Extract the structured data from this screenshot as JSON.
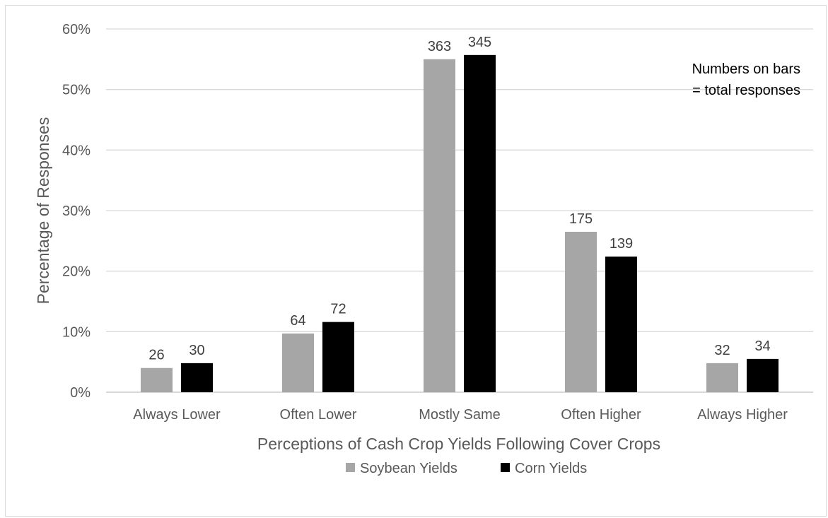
{
  "chart_data": {
    "type": "bar",
    "categories": [
      "Always Lower",
      "Often Lower",
      "Mostly Same",
      "Often Higher",
      "Always Higher"
    ],
    "series": [
      {
        "name": "Soybean Yields",
        "color": "#a6a6a6",
        "values": [
          4.0,
          9.7,
          55.0,
          26.5,
          4.8
        ],
        "labels": [
          "26",
          "64",
          "363",
          "175",
          "32"
        ]
      },
      {
        "name": "Corn Yields",
        "color": "#000000",
        "values": [
          4.8,
          11.6,
          55.7,
          22.4,
          5.5
        ],
        "labels": [
          "30",
          "72",
          "345",
          "139",
          "34"
        ]
      }
    ],
    "ylim": [
      0,
      60
    ],
    "yticks": [
      "0%",
      "10%",
      "20%",
      "30%",
      "40%",
      "50%",
      "60%"
    ],
    "xlabel": "Perceptions of Cash Crop Yields Following Cover Crops",
    "ylabel": "Percentage of Responses",
    "annotation": [
      "Numbers on bars",
      "= total responses"
    ],
    "grid": true,
    "legend_position": "bottom"
  }
}
